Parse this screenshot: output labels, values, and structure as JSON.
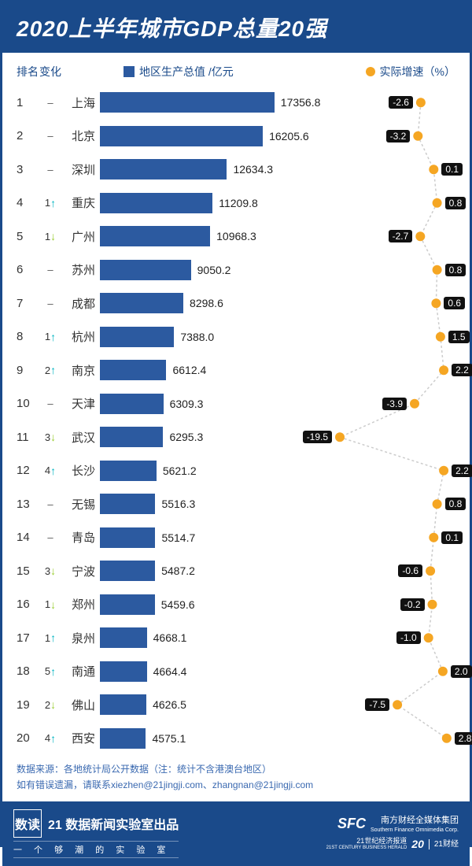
{
  "title": "2020上半年城市GDP总量20强",
  "headers": {
    "rank": "排名",
    "change": "变化",
    "city": "",
    "bar_legend": "地区生产总值 /亿元",
    "growth_legend": "实际增速（%）"
  },
  "chart": {
    "type": "bar+line",
    "bar_color": "#2c5aa0",
    "dot_color": "#f5a623",
    "line_color": "#cccccc",
    "bar_max_value": 18000,
    "growth_min": -20,
    "growth_max": 3,
    "row_height": 42.5,
    "background": "#ffffff",
    "title_bg": "#1a4a8a",
    "title_color": "#ffffff",
    "text_color": "#333333",
    "note_color": "#3a69b0",
    "arrow_up_color": "#00b4c0",
    "arrow_down_color": "#9acd32",
    "badge_bg": "#111111",
    "badge_text": "#ffffff"
  },
  "rows": [
    {
      "rank": 1,
      "change": "-",
      "dir": "none",
      "city": "上海",
      "gdp": 17356.8,
      "growth": -2.6,
      "badge_side": "left"
    },
    {
      "rank": 2,
      "change": "-",
      "dir": "none",
      "city": "北京",
      "gdp": 16205.6,
      "growth": -3.2,
      "badge_side": "left"
    },
    {
      "rank": 3,
      "change": "-",
      "dir": "none",
      "city": "深圳",
      "gdp": 12634.3,
      "growth": 0.1,
      "badge_side": "right"
    },
    {
      "rank": 4,
      "change": "1",
      "dir": "up",
      "city": "重庆",
      "gdp": 11209.8,
      "growth": 0.8,
      "badge_side": "right"
    },
    {
      "rank": 5,
      "change": "1",
      "dir": "down",
      "city": "广州",
      "gdp": 10968.3,
      "growth": -2.7,
      "badge_side": "left"
    },
    {
      "rank": 6,
      "change": "-",
      "dir": "none",
      "city": "苏州",
      "gdp": 9050.2,
      "growth": 0.8,
      "badge_side": "right"
    },
    {
      "rank": 7,
      "change": "-",
      "dir": "none",
      "city": "成都",
      "gdp": 8298.6,
      "growth": 0.6,
      "badge_side": "right"
    },
    {
      "rank": 8,
      "change": "1",
      "dir": "up",
      "city": "杭州",
      "gdp": 7388.0,
      "growth": 1.5,
      "badge_side": "right"
    },
    {
      "rank": 9,
      "change": "2",
      "dir": "up",
      "city": "南京",
      "gdp": 6612.4,
      "growth": 2.2,
      "badge_side": "right"
    },
    {
      "rank": 10,
      "change": "-",
      "dir": "none",
      "city": "天津",
      "gdp": 6309.3,
      "growth": -3.9,
      "badge_side": "left"
    },
    {
      "rank": 11,
      "change": "3",
      "dir": "down",
      "city": "武汉",
      "gdp": 6295.3,
      "growth": -19.5,
      "badge_side": "left"
    },
    {
      "rank": 12,
      "change": "4",
      "dir": "up",
      "city": "长沙",
      "gdp": 5621.2,
      "growth": 2.2,
      "badge_side": "right"
    },
    {
      "rank": 13,
      "change": "-",
      "dir": "none",
      "city": "无锡",
      "gdp": 5516.3,
      "growth": 0.8,
      "badge_side": "right"
    },
    {
      "rank": 14,
      "change": "-",
      "dir": "none",
      "city": "青岛",
      "gdp": 5514.7,
      "growth": 0.1,
      "badge_side": "right"
    },
    {
      "rank": 15,
      "change": "3",
      "dir": "down",
      "city": "宁波",
      "gdp": 5487.2,
      "growth": -0.6,
      "badge_side": "left"
    },
    {
      "rank": 16,
      "change": "1",
      "dir": "down",
      "city": "郑州",
      "gdp": 5459.6,
      "growth": -0.2,
      "badge_side": "left"
    },
    {
      "rank": 17,
      "change": "1",
      "dir": "up",
      "city": "泉州",
      "gdp": 4668.1,
      "growth": -1.0,
      "badge_side": "left"
    },
    {
      "rank": 18,
      "change": "5",
      "dir": "up",
      "city": "南通",
      "gdp": 4664.4,
      "growth": 2.0,
      "badge_side": "right"
    },
    {
      "rank": 19,
      "change": "2",
      "dir": "down",
      "city": "佛山",
      "gdp": 4626.5,
      "growth": -7.5,
      "badge_side": "left"
    },
    {
      "rank": 20,
      "change": "4",
      "dir": "up",
      "city": "西安",
      "gdp": 4575.1,
      "growth": 2.8,
      "badge_side": "right"
    }
  ],
  "notes": {
    "line1": "数据来源：各地统计局公开数据（注：统计不含港澳台地区）",
    "line2": "如有错误遗漏，请联系xiezhen@21jingji.com、zhangnan@21jingji.com"
  },
  "footer": {
    "logo": "数读",
    "title": "21 数据新闻实验室出品",
    "subtitle": "一 个 够 潮 的 实 验 室",
    "sfc": "SFC",
    "sfc_cn": "南方财经全媒体集团",
    "sfc_en": "Southern Finance Omnimedia Corp.",
    "bottom_left": "21世纪经济报道",
    "bottom_left_en": "21ST CENTURY BUSINESS HERALD",
    "anniv": "20",
    "brand": "21财经"
  }
}
